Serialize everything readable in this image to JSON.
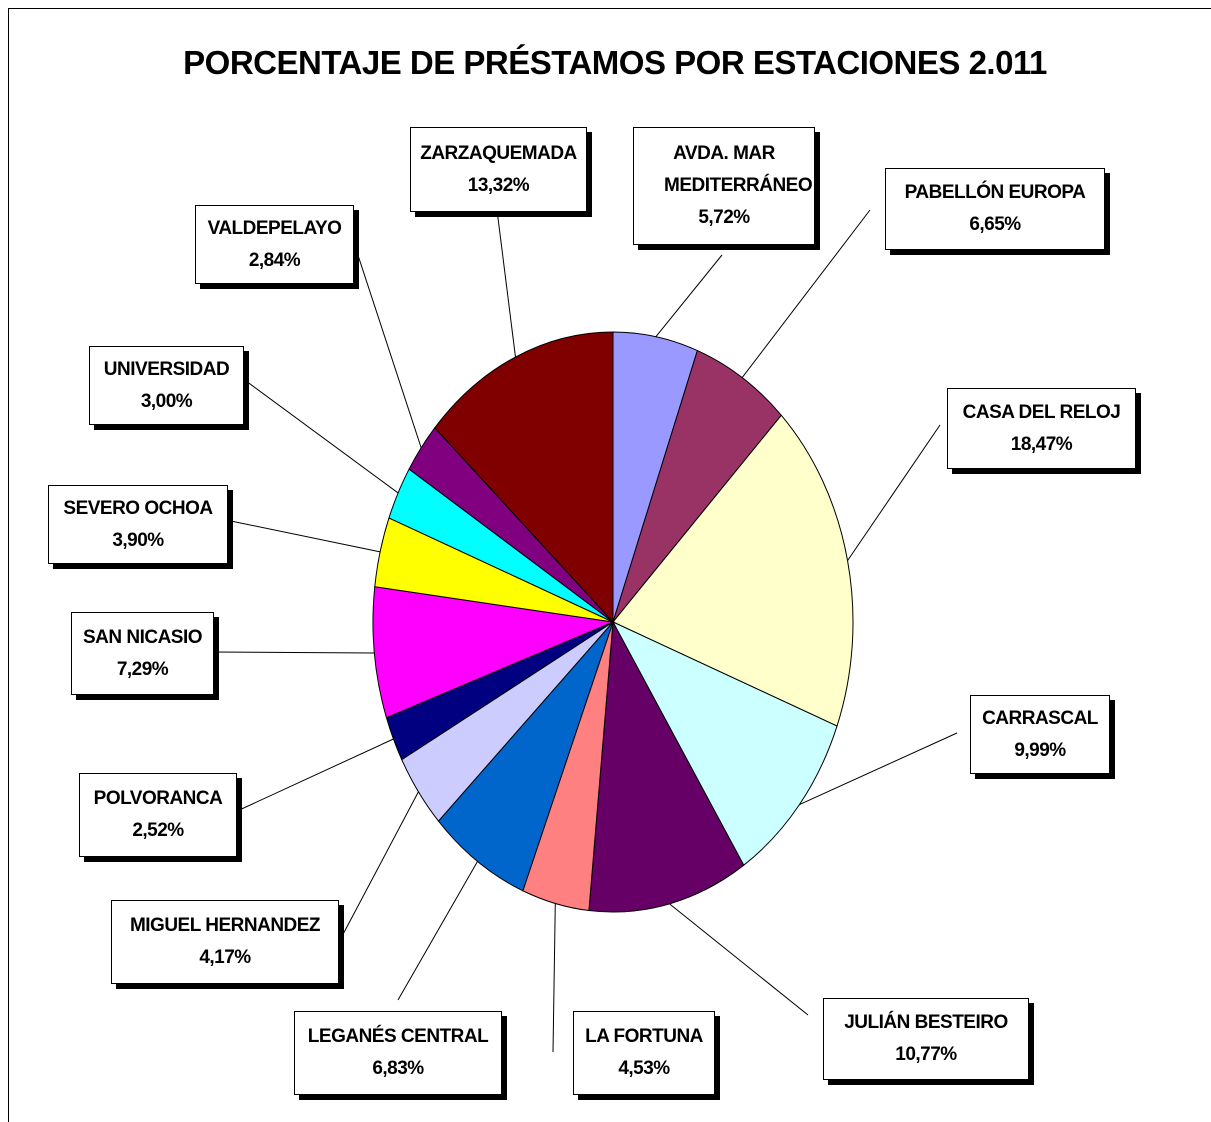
{
  "chart_data": {
    "type": "pie",
    "title": "PORCENTAJE DE PRÉSTAMOS POR ESTACIONES 2.011",
    "categories": [
      "AVDA. MAR MEDITERRÁNEO",
      "PABELLÓN EUROPA",
      "CASA DEL RELOJ",
      "CARRASCAL",
      "JULIÁN BESTEIRO",
      "LA FORTUNA",
      "LEGANÉS CENTRAL",
      "MIGUEL HERNANDEZ",
      "POLVORANCA",
      "SAN NICASIO",
      "SEVERO OCHOA",
      "UNIVERSIDAD",
      "VALDEPELAYO",
      "ZARZAQUEMADA"
    ],
    "values": [
      5.72,
      6.65,
      18.47,
      9.99,
      10.77,
      4.53,
      6.83,
      4.17,
      2.52,
      7.29,
      3.9,
      3.0,
      2.84,
      13.32
    ],
    "value_labels": [
      "5,72%",
      "6,65%",
      "18,47%",
      "9,99%",
      "10,77%",
      "4,53%",
      "6,83%",
      "4,17%",
      "2,52%",
      "7,29%",
      "3,90%",
      "3,00%",
      "2,84%",
      "13,32%"
    ],
    "colors": [
      "#9999ff",
      "#993366",
      "#ffffcc",
      "#ccffff",
      "#660066",
      "#ff8080",
      "#0066cc",
      "#ccccff",
      "#000080",
      "#ff00ff",
      "#ffff00",
      "#00ffff",
      "#800080",
      "#800000"
    ]
  }
}
